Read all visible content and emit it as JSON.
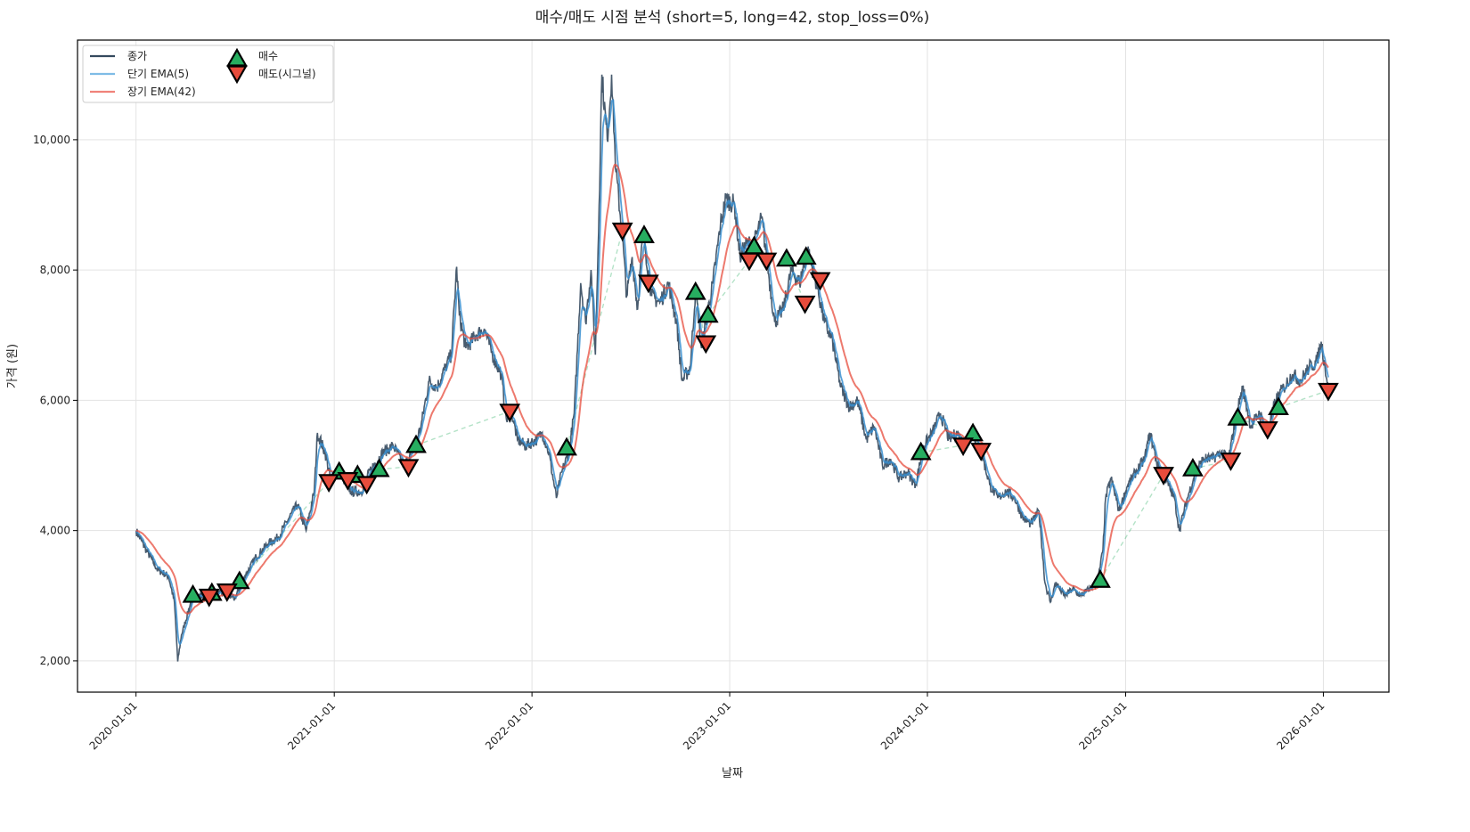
{
  "chart_data": {
    "type": "line",
    "title": "매수/매도 시점 분석 (short=5, long=42, stop_loss=0%)",
    "xlabel": "날짜",
    "ylabel": "가격 (원)",
    "xlim": [
      "2019-09-15",
      "2026-05-02"
    ],
    "ylim": [
      1520,
      11530
    ],
    "grid": true,
    "legend_position": "top-left",
    "x_ticks": [
      "2020-01-01",
      "2021-01-01",
      "2022-01-01",
      "2023-01-01",
      "2024-01-01",
      "2025-01-01",
      "2026-01-01"
    ],
    "y_ticks": [
      2000,
      4000,
      6000,
      8000,
      10000
    ],
    "y_tick_labels": [
      "2,000",
      "4,000",
      "6,000",
      "8,000",
      "10,000"
    ],
    "legend": [
      {
        "key": "close",
        "label": "종가",
        "color": "#34495e",
        "kind": "line"
      },
      {
        "key": "ema_short",
        "label": "단기 EMA(5)",
        "color": "#5dade2",
        "kind": "line"
      },
      {
        "key": "ema_long",
        "label": "장기 EMA(42)",
        "color": "#e74c3c",
        "kind": "line"
      },
      {
        "key": "buy",
        "label": "매수",
        "color": "#27ae60",
        "kind": "marker-up"
      },
      {
        "key": "sell",
        "label": "매도(시그널)",
        "color": "#e74c3c",
        "kind": "marker-down"
      }
    ],
    "ema_spans": {
      "short": 5,
      "long": 42
    },
    "close": [
      [
        "2020-01-01",
        4000
      ],
      [
        "2020-01-20",
        3700
      ],
      [
        "2020-02-10",
        3400
      ],
      [
        "2020-03-01",
        3300
      ],
      [
        "2020-03-12",
        2900
      ],
      [
        "2020-03-18",
        1990
      ],
      [
        "2020-03-25",
        2400
      ],
      [
        "2020-04-15",
        3000
      ],
      [
        "2020-05-15",
        3000
      ],
      [
        "2020-06-15",
        3050
      ],
      [
        "2020-07-01",
        2950
      ],
      [
        "2020-07-20",
        3300
      ],
      [
        "2020-08-10",
        3600
      ],
      [
        "2020-09-01",
        3800
      ],
      [
        "2020-09-20",
        3900
      ],
      [
        "2020-10-10",
        4200
      ],
      [
        "2020-10-25",
        4400
      ],
      [
        "2020-11-10",
        4000
      ],
      [
        "2020-11-25",
        4600
      ],
      [
        "2020-12-01",
        5500
      ],
      [
        "2020-12-15",
        5200
      ],
      [
        "2020-12-25",
        4800
      ],
      [
        "2021-01-10",
        4900
      ],
      [
        "2021-02-01",
        4600
      ],
      [
        "2021-02-20",
        4600
      ],
      [
        "2021-03-10",
        4950
      ],
      [
        "2021-04-01",
        5200
      ],
      [
        "2021-04-20",
        5300
      ],
      [
        "2021-05-10",
        5000
      ],
      [
        "2021-05-25",
        5200
      ],
      [
        "2021-06-10",
        5600
      ],
      [
        "2021-06-25",
        6300
      ],
      [
        "2021-07-10",
        6200
      ],
      [
        "2021-07-25",
        6500
      ],
      [
        "2021-08-05",
        6700
      ],
      [
        "2021-08-15",
        8050
      ],
      [
        "2021-08-20",
        7300
      ],
      [
        "2021-09-01",
        6800
      ],
      [
        "2021-09-20",
        7000
      ],
      [
        "2021-10-05",
        7100
      ],
      [
        "2021-10-20",
        6700
      ],
      [
        "2021-11-05",
        6400
      ],
      [
        "2021-11-15",
        5700
      ],
      [
        "2021-11-25",
        5800
      ],
      [
        "2021-12-05",
        5400
      ],
      [
        "2021-12-20",
        5300
      ],
      [
        "2022-01-10",
        5400
      ],
      [
        "2022-01-20",
        5500
      ],
      [
        "2022-02-01",
        5200
      ],
      [
        "2022-02-15",
        4500
      ],
      [
        "2022-02-25",
        4900
      ],
      [
        "2022-03-10",
        5200
      ],
      [
        "2022-03-20",
        5800
      ],
      [
        "2022-04-01",
        7800
      ],
      [
        "2022-04-10",
        7200
      ],
      [
        "2022-04-20",
        8000
      ],
      [
        "2022-04-28",
        6700
      ],
      [
        "2022-05-05",
        9000
      ],
      [
        "2022-05-10",
        11000
      ],
      [
        "2022-05-20",
        10000
      ],
      [
        "2022-05-28",
        11000
      ],
      [
        "2022-06-05",
        9500
      ],
      [
        "2022-06-15",
        8700
      ],
      [
        "2022-06-25",
        7600
      ],
      [
        "2022-07-05",
        8200
      ],
      [
        "2022-07-15",
        7400
      ],
      [
        "2022-07-25",
        8600
      ],
      [
        "2022-08-10",
        7600
      ],
      [
        "2022-08-25",
        7500
      ],
      [
        "2022-09-10",
        7800
      ],
      [
        "2022-09-25",
        7200
      ],
      [
        "2022-10-05",
        6300
      ],
      [
        "2022-10-20",
        6500
      ],
      [
        "2022-10-30",
        7700
      ],
      [
        "2022-11-10",
        6800
      ],
      [
        "2022-11-20",
        7300
      ],
      [
        "2022-12-01",
        7800
      ],
      [
        "2022-12-15",
        8700
      ],
      [
        "2022-12-25",
        9100
      ],
      [
        "2023-01-10",
        9000
      ],
      [
        "2023-01-20",
        8200
      ],
      [
        "2023-02-01",
        8400
      ],
      [
        "2023-02-15",
        8400
      ],
      [
        "2023-03-01",
        8800
      ],
      [
        "2023-03-10",
        8200
      ],
      [
        "2023-03-25",
        7200
      ],
      [
        "2023-04-10",
        7400
      ],
      [
        "2023-04-25",
        8000
      ],
      [
        "2023-05-10",
        7800
      ],
      [
        "2023-05-25",
        8300
      ],
      [
        "2023-06-10",
        7800
      ],
      [
        "2023-06-25",
        7200
      ],
      [
        "2023-07-10",
        6900
      ],
      [
        "2023-07-25",
        6200
      ],
      [
        "2023-08-10",
        5900
      ],
      [
        "2023-08-25",
        6000
      ],
      [
        "2023-09-10",
        5400
      ],
      [
        "2023-09-25",
        5600
      ],
      [
        "2023-10-10",
        5000
      ],
      [
        "2023-10-25",
        5100
      ],
      [
        "2023-11-10",
        4800
      ],
      [
        "2023-11-25",
        4900
      ],
      [
        "2023-12-10",
        4700
      ],
      [
        "2023-12-25",
        5300
      ],
      [
        "2024-01-10",
        5500
      ],
      [
        "2024-01-25",
        5800
      ],
      [
        "2024-02-10",
        5400
      ],
      [
        "2024-02-25",
        5500
      ],
      [
        "2024-03-10",
        5300
      ],
      [
        "2024-03-25",
        5500
      ],
      [
        "2024-04-10",
        5200
      ],
      [
        "2024-04-25",
        4700
      ],
      [
        "2024-05-10",
        4500
      ],
      [
        "2024-05-25",
        4600
      ],
      [
        "2024-06-10",
        4500
      ],
      [
        "2024-06-25",
        4200
      ],
      [
        "2024-07-10",
        4100
      ],
      [
        "2024-07-25",
        4300
      ],
      [
        "2024-08-05",
        3200
      ],
      [
        "2024-08-15",
        2900
      ],
      [
        "2024-08-25",
        3200
      ],
      [
        "2024-09-10",
        3000
      ],
      [
        "2024-09-25",
        3100
      ],
      [
        "2024-10-10",
        3000
      ],
      [
        "2024-10-25",
        3100
      ],
      [
        "2024-11-10",
        3200
      ],
      [
        "2024-11-20",
        3700
      ],
      [
        "2024-11-25",
        4500
      ],
      [
        "2024-12-05",
        4800
      ],
      [
        "2024-12-20",
        4300
      ],
      [
        "2025-01-05",
        4700
      ],
      [
        "2025-01-20",
        4900
      ],
      [
        "2025-02-05",
        5100
      ],
      [
        "2025-02-15",
        5500
      ],
      [
        "2025-03-01",
        5000
      ],
      [
        "2025-03-15",
        4800
      ],
      [
        "2025-04-01",
        4500
      ],
      [
        "2025-04-10",
        4000
      ],
      [
        "2025-04-25",
        4500
      ],
      [
        "2025-05-10",
        4900
      ],
      [
        "2025-05-25",
        5100
      ],
      [
        "2025-06-10",
        5100
      ],
      [
        "2025-06-25",
        5200
      ],
      [
        "2025-07-10",
        5100
      ],
      [
        "2025-07-25",
        5800
      ],
      [
        "2025-08-05",
        6200
      ],
      [
        "2025-08-20",
        5600
      ],
      [
        "2025-09-05",
        5800
      ],
      [
        "2025-09-20",
        5500
      ],
      [
        "2025-10-05",
        6000
      ],
      [
        "2025-10-20",
        6200
      ],
      [
        "2025-11-05",
        6400
      ],
      [
        "2025-11-20",
        6300
      ],
      [
        "2025-12-05",
        6500
      ],
      [
        "2025-12-20",
        6600
      ],
      [
        "2025-12-28",
        6900
      ],
      [
        "2026-01-10",
        6200
      ]
    ],
    "buy_points": [
      [
        "2020-04-15",
        3010
      ],
      [
        "2020-05-20",
        3040
      ],
      [
        "2020-07-10",
        3220
      ],
      [
        "2021-01-10",
        4900
      ],
      [
        "2021-02-13",
        4850
      ],
      [
        "2021-03-25",
        4940
      ],
      [
        "2021-06-01",
        5310
      ],
      [
        "2022-03-06",
        5270
      ],
      [
        "2022-07-27",
        8530
      ],
      [
        "2022-10-30",
        7660
      ],
      [
        "2022-11-22",
        7310
      ],
      [
        "2023-02-15",
        8360
      ],
      [
        "2023-04-16",
        8170
      ],
      [
        "2023-05-22",
        8200
      ],
      [
        "2023-12-20",
        5200
      ],
      [
        "2024-03-25",
        5490
      ],
      [
        "2024-11-15",
        3240
      ],
      [
        "2025-05-05",
        4950
      ],
      [
        "2025-07-27",
        5730
      ],
      [
        "2025-10-10",
        5890
      ]
    ],
    "sell_points": [
      [
        "2020-05-15",
        2990
      ],
      [
        "2020-06-17",
        3070
      ],
      [
        "2020-12-22",
        4750
      ],
      [
        "2021-01-26",
        4780
      ],
      [
        "2021-03-02",
        4720
      ],
      [
        "2021-05-18",
        4980
      ],
      [
        "2021-11-21",
        5830
      ],
      [
        "2022-06-17",
        8610
      ],
      [
        "2022-08-04",
        7810
      ],
      [
        "2022-11-18",
        6880
      ],
      [
        "2023-02-06",
        8150
      ],
      [
        "2023-03-10",
        8150
      ],
      [
        "2023-05-20",
        7490
      ],
      [
        "2023-06-17",
        7850
      ],
      [
        "2024-03-07",
        5310
      ],
      [
        "2024-04-09",
        5230
      ],
      [
        "2025-03-12",
        4860
      ],
      [
        "2025-07-14",
        5080
      ],
      [
        "2025-09-20",
        5560
      ],
      [
        "2026-01-10",
        6150
      ]
    ]
  }
}
